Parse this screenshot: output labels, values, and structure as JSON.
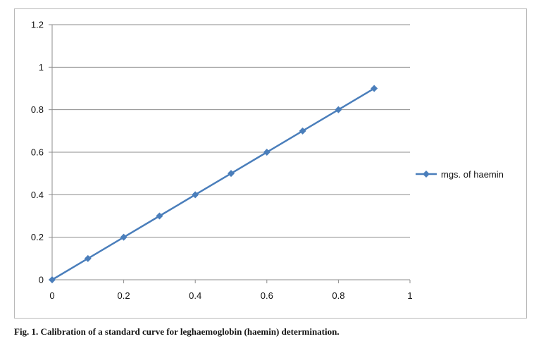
{
  "chart_data": {
    "type": "scatter",
    "x": [
      0,
      0.1,
      0.2,
      0.3,
      0.4,
      0.5,
      0.6,
      0.7,
      0.8,
      0.9
    ],
    "series": [
      {
        "name": "mgs. of haemin",
        "values": [
          0,
          0.1,
          0.2,
          0.3,
          0.4,
          0.5,
          0.6,
          0.7,
          0.8,
          0.9
        ]
      }
    ],
    "xlim": [
      0,
      1
    ],
    "ylim": [
      0,
      1.2
    ],
    "x_ticks": [
      "0",
      "0.2",
      "0.4",
      "0.6",
      "0.8",
      "1"
    ],
    "y_ticks": [
      "0",
      "0.2",
      "0.4",
      "0.6",
      "0.8",
      "1",
      "1.2"
    ],
    "grid": "horizontal",
    "legend_position": "right",
    "marker": "diamond",
    "line_style": "straight lines with markers",
    "series_color": "#4a7ebb"
  },
  "caption": "Fig. 1. Calibration of a standard curve for leghaemoglobin (haemin) determination."
}
